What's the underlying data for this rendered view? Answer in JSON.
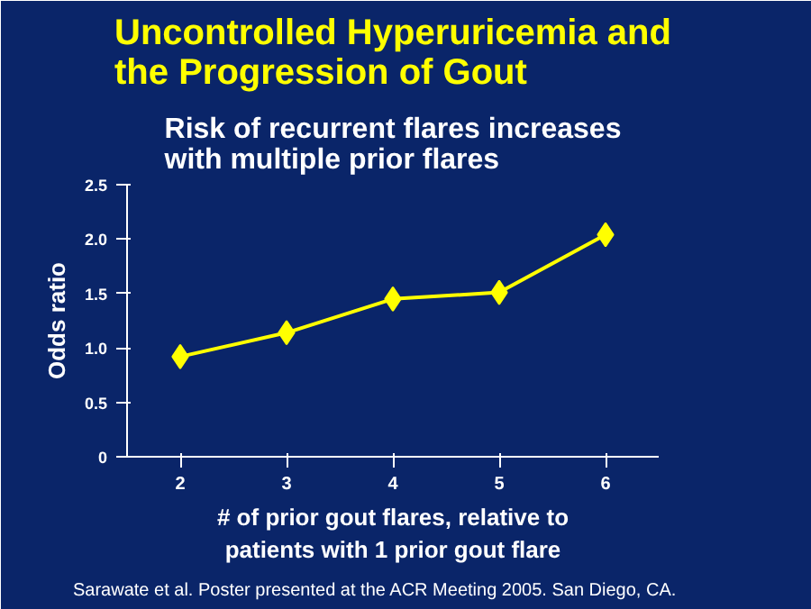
{
  "chart_data": {
    "type": "line",
    "title": "Uncontrolled Hyperuricemia and\nthe Progression of Gout",
    "subtitle": "Risk of recurrent flares increases\nwith multiple prior flares",
    "xlabel": "# of prior gout flares, relative to\npatients with 1 prior gout flare",
    "ylabel": "Odds ratio",
    "categories": [
      "2",
      "3",
      "4",
      "5",
      "6"
    ],
    "series": [
      {
        "color": "#ffff00",
        "values": [
          0.92,
          1.14,
          1.45,
          1.51,
          2.04
        ]
      }
    ],
    "ylim": [
      0,
      2.5
    ],
    "yticks": [
      0,
      0.5,
      {
        "value": 1,
        "label": "1.0"
      },
      1.5,
      {
        "value": 2,
        "label": "2.0"
      },
      2.5
    ],
    "marker": "diamond",
    "grid": false,
    "annotations": [
      "Sarawate et al. Poster presented at the ACR Meeting 2005. San Diego, CA."
    ]
  }
}
